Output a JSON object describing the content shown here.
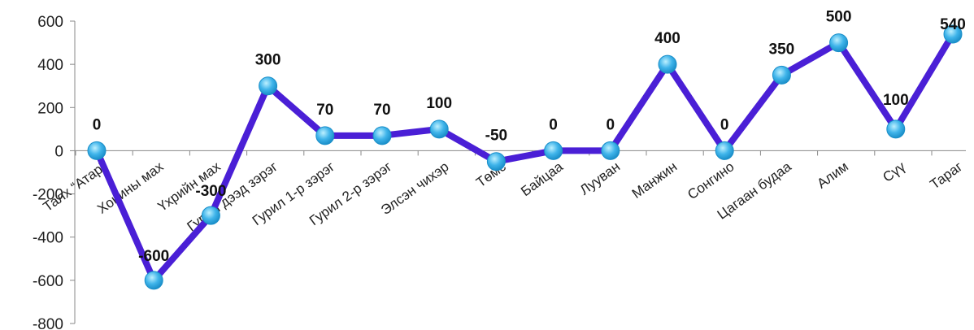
{
  "chart_data": {
    "type": "line",
    "title": "",
    "xlabel": "",
    "ylabel": "",
    "categories": [
      "Талх “Атар”",
      "Хонины мах",
      "Үхрийн мах",
      "Гурил дээд зэрэг",
      "Гурил 1-р зэрэг",
      "Гурил 2-р зэрэг",
      "Элсэн чихэр",
      "Төмс",
      "Байцаа",
      "Лууван",
      "Манжин",
      "Сонгино",
      "Цагаан будаа",
      "Алим",
      "Сүү",
      "Тараг"
    ],
    "series": [
      {
        "values": [
          0,
          -600,
          -300,
          300,
          70,
          70,
          100,
          -50,
          0,
          0,
          400,
          0,
          350,
          500,
          100,
          540
        ]
      }
    ],
    "data_labels": [
      "0",
      "-600",
      "-300",
      "300",
      "70",
      "70",
      "100",
      "-50",
      "0",
      "0",
      "400",
      "0",
      "350",
      "500",
      "100",
      "540"
    ],
    "y_ticks": [
      "600",
      "400",
      "200",
      "0",
      "-200",
      "-400",
      "-600",
      "-800"
    ],
    "ylim": [
      -800,
      600
    ],
    "grid": false,
    "legend": "none",
    "colors": {
      "line": "#4a1fd6",
      "marker": "#3fb4ea",
      "marker_edge": "#1b8fc9",
      "axis": "#888888"
    }
  }
}
